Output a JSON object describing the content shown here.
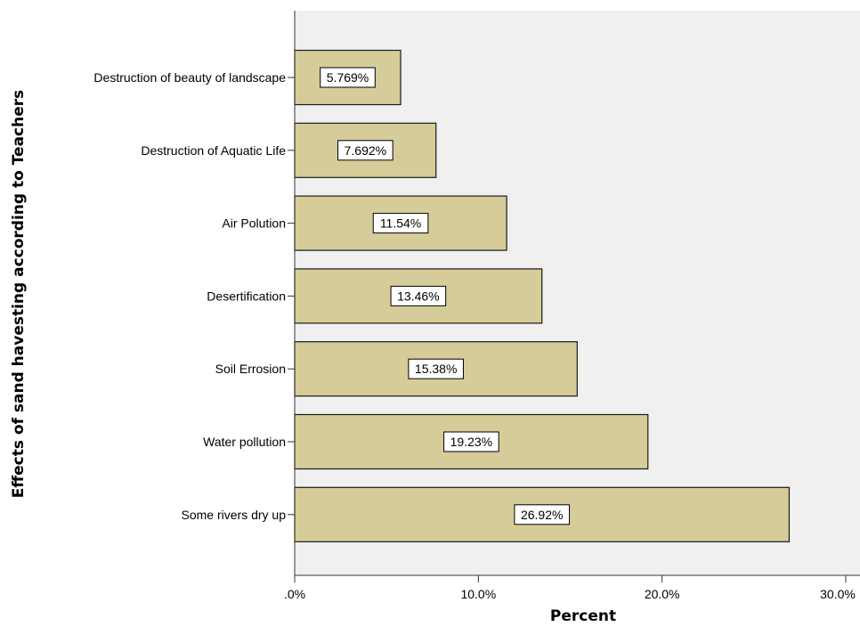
{
  "chart_data": {
    "type": "bar",
    "orientation": "horizontal",
    "categories": [
      "Destruction of beauty of landscape",
      "Destruction of Aquatic Life",
      "Air Polution",
      "Desertification",
      "Soil Errosion",
      "Water pollution",
      "Some rivers dry up"
    ],
    "values": [
      5.769,
      7.692,
      11.54,
      13.46,
      15.38,
      19.23,
      26.92
    ],
    "data_labels": [
      "5.769%",
      "7.692%",
      "11.54%",
      "13.46%",
      "15.38%",
      "19.23%",
      "26.92%"
    ],
    "xlabel": "Percent",
    "ylabel": "Effects  of sand havesting  according to Teachers",
    "xlim": [
      0,
      30
    ],
    "xticks": [
      0,
      10,
      20,
      30
    ],
    "xtick_labels": [
      ".0%",
      "10.0%",
      "20.0%",
      "30.0%"
    ],
    "grid": false,
    "legend": "none",
    "colors": {
      "bar_fill": "#d5cc99",
      "bar_stroke": "#1a1a1a",
      "plot_background": "#f0f0f0",
      "label_box": "#ffffff"
    }
  }
}
